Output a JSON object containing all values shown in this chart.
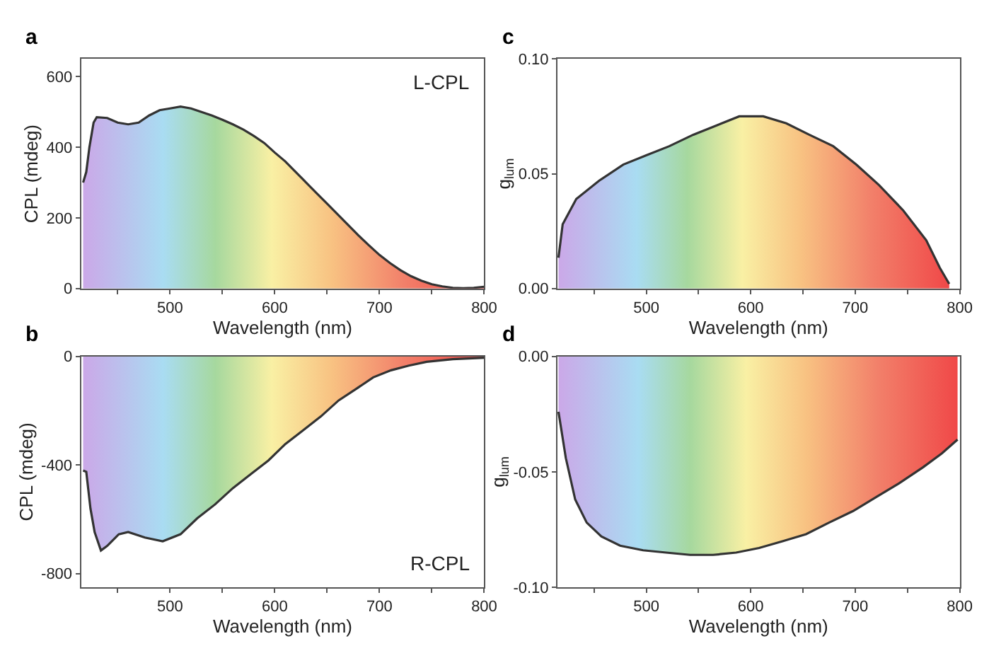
{
  "chart_data": [
    {
      "type": "area",
      "title": "a",
      "xlabel": "Wavelength (nm)",
      "ylabel": "CPL (mdeg)",
      "annotations": [
        "L-CPL"
      ],
      "xlim": [
        415,
        800
      ],
      "ylim": [
        0,
        650
      ],
      "xticks": [
        {
          "value": 450,
          "label": null
        },
        500,
        {
          "value": 550,
          "label": null
        },
        600,
        {
          "value": 650,
          "label": null
        },
        700,
        {
          "value": 750,
          "label": null
        },
        800
      ],
      "yticks": [
        0,
        200,
        400,
        600
      ],
      "x": [
        417,
        420,
        423,
        427,
        430,
        440,
        450,
        460,
        470,
        480,
        490,
        500,
        510,
        520,
        530,
        540,
        550,
        560,
        570,
        580,
        590,
        600,
        610,
        620,
        630,
        640,
        650,
        660,
        670,
        680,
        690,
        700,
        710,
        720,
        730,
        740,
        750,
        760,
        770,
        780,
        790,
        800
      ],
      "series": [
        {
          "color": "#333333",
          "values": [
            300,
            330,
            400,
            470,
            485,
            483,
            470,
            465,
            470,
            490,
            505,
            510,
            515,
            510,
            500,
            490,
            478,
            465,
            450,
            432,
            412,
            385,
            360,
            330,
            300,
            270,
            240,
            210,
            180,
            150,
            122,
            95,
            72,
            52,
            35,
            22,
            12,
            6,
            2,
            1,
            2,
            5
          ]
        }
      ]
    },
    {
      "type": "area",
      "title": "b",
      "xlabel": "Wavelength (nm)",
      "ylabel": "CPL (mdeg)",
      "annotations": [
        "R-CPL"
      ],
      "xlim": [
        415,
        800
      ],
      "ylim": [
        -850,
        0
      ],
      "xticks": [
        {
          "value": 450,
          "label": null
        },
        500,
        {
          "value": 550,
          "label": null
        },
        600,
        {
          "value": 650,
          "label": null
        },
        700,
        {
          "value": 750,
          "label": null
        },
        800
      ],
      "yticks": [
        -800,
        -400,
        0
      ],
      "x": [
        417,
        420,
        424,
        428,
        434,
        440,
        451,
        460,
        476,
        493,
        510,
        526,
        543,
        560,
        577,
        594,
        610,
        627,
        644,
        661,
        678,
        694,
        711,
        728,
        745,
        770,
        800
      ],
      "series": [
        {
          "color": "#333333",
          "values": [
            -420,
            -425,
            -560,
            -647,
            -715,
            -698,
            -655,
            -647,
            -667,
            -681,
            -655,
            -596,
            -545,
            -485,
            -434,
            -383,
            -323,
            -272,
            -221,
            -162,
            -119,
            -77,
            -51,
            -34,
            -20,
            -10,
            -5
          ]
        }
      ]
    },
    {
      "type": "area",
      "title": "c",
      "xlabel": "Wavelength (nm)",
      "ylabel": "g$_{lum}$",
      "xlim": [
        415,
        800
      ],
      "ylim": [
        0,
        0.1
      ],
      "xticks": [
        {
          "value": 450,
          "label": null
        },
        500,
        {
          "value": 550,
          "label": null
        },
        600,
        {
          "value": 650,
          "label": null
        },
        700,
        {
          "value": 750,
          "label": null
        },
        800
      ],
      "yticks": [
        {
          "value": 0,
          "label": "0.00"
        },
        {
          "value": 0.05,
          "label": "0.05"
        },
        {
          "value": 0.1,
          "label": "0.10"
        }
      ],
      "x": [
        416,
        420,
        433,
        455,
        478,
        500,
        522,
        545,
        567,
        589,
        612,
        634,
        656,
        679,
        701,
        723,
        746,
        768,
        781,
        790
      ],
      "series": [
        {
          "color": "#333333",
          "values": [
            0.0134,
            0.028,
            0.039,
            0.047,
            0.054,
            0.058,
            0.062,
            0.067,
            0.071,
            0.075,
            0.075,
            0.072,
            0.067,
            0.062,
            0.054,
            0.045,
            0.034,
            0.021,
            0.009,
            0.002
          ]
        }
      ]
    },
    {
      "type": "area",
      "title": "d",
      "xlabel": "Wavelength (nm)",
      "ylabel": "g$_{lum}$",
      "xlim": [
        415,
        800
      ],
      "ylim": [
        -0.1,
        0
      ],
      "xticks": [
        {
          "value": 450,
          "label": null
        },
        500,
        {
          "value": 550,
          "label": null
        },
        600,
        {
          "value": 650,
          "label": null
        },
        700,
        {
          "value": 750,
          "label": null
        },
        800
      ],
      "yticks": [
        {
          "value": -0.1,
          "label": "-0.10"
        },
        {
          "value": -0.05,
          "label": "-0.05"
        },
        {
          "value": 0,
          "label": "0.00"
        }
      ],
      "x": [
        416,
        423,
        432,
        443,
        457,
        475,
        497,
        519,
        542,
        564,
        586,
        608,
        631,
        653,
        675,
        698,
        720,
        742,
        765,
        783,
        798
      ],
      "series": [
        {
          "color": "#333333",
          "values": [
            -0.024,
            -0.044,
            -0.062,
            -0.072,
            -0.078,
            -0.082,
            -0.084,
            -0.085,
            -0.086,
            -0.086,
            -0.085,
            -0.083,
            -0.08,
            -0.077,
            -0.072,
            -0.067,
            -0.061,
            -0.055,
            -0.048,
            -0.042,
            -0.036
          ]
        }
      ]
    }
  ]
}
